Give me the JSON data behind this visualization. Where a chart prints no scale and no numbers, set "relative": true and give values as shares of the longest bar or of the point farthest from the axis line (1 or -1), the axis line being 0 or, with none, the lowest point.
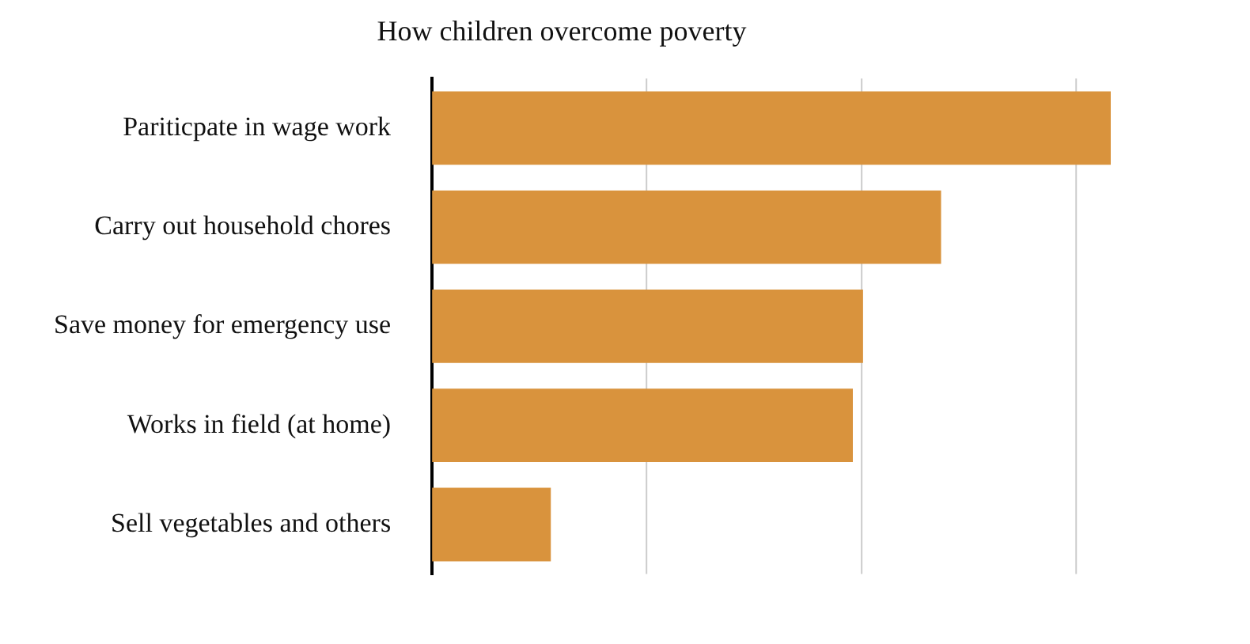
{
  "chart_data": {
    "type": "bar",
    "orientation": "horizontal",
    "relative": true,
    "title": "How children overcome poverty",
    "categories": [
      "Pariticpate in wage work",
      "Carry out household chores",
      "Save money for emergency use",
      "Works in field (at home)",
      "Sell vegetables and others"
    ],
    "values": [
      1,
      0.75,
      0.635,
      0.62,
      0.175
    ],
    "color": "#d9933d",
    "legend": false,
    "ref_lines": [
      {
        "axis": "x",
        "value": 0.316,
        "color": "#cccccc"
      },
      {
        "axis": "x",
        "value": 0.633,
        "color": "#cccccc"
      },
      {
        "axis": "x",
        "value": 0.949,
        "color": "#cccccc"
      }
    ]
  }
}
